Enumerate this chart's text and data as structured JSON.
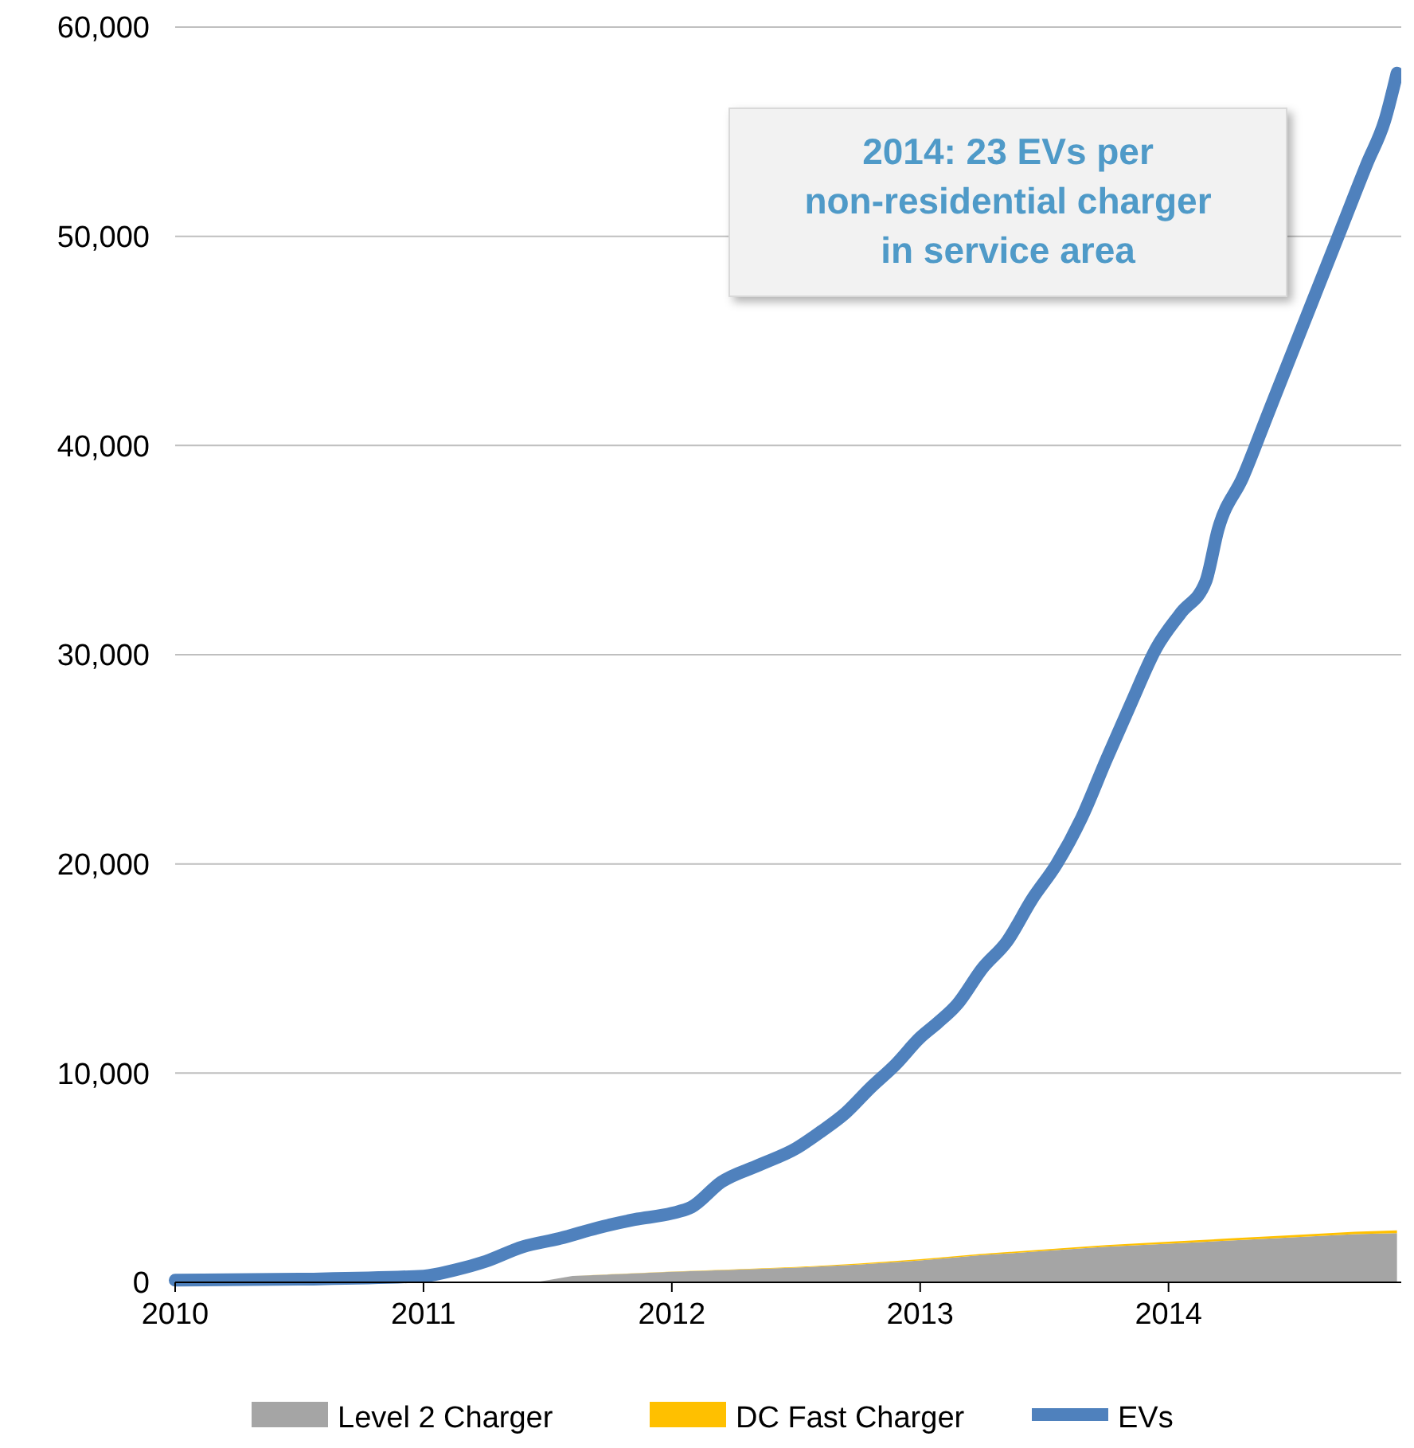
{
  "chart_data": {
    "type": "area",
    "stacked": true,
    "x": [
      2011.45,
      2011.6,
      2011.8,
      2012.0,
      2012.25,
      2012.5,
      2012.75,
      2013.0,
      2013.25,
      2013.5,
      2013.75,
      2014.0,
      2014.25,
      2014.5,
      2014.75,
      2014.92
    ],
    "series": [
      {
        "name": "Level 2 Charger",
        "color": "#a5a5a5",
        "values": [
          0,
          300,
          400,
          500,
          600,
          700,
          850,
          1050,
          1300,
          1500,
          1700,
          1850,
          2000,
          2150,
          2300,
          2350
        ]
      },
      {
        "name": "DC Fast Charger",
        "color": "#ffc000",
        "values": [
          0,
          5,
          10,
          15,
          20,
          30,
          40,
          50,
          60,
          70,
          80,
          90,
          100,
          110,
          120,
          130
        ]
      },
      {
        "name": "EVs",
        "type": "line",
        "color": "#4f81bd",
        "x": [
          2010.0,
          2010.5,
          2011.0,
          2011.13,
          2011.25,
          2011.4,
          2011.55,
          2011.7,
          2011.85,
          2012.0,
          2012.08,
          2012.2,
          2012.35,
          2012.5,
          2012.6,
          2012.7,
          2012.8,
          2012.9,
          2013.0,
          2013.07,
          2013.15,
          2013.25,
          2013.35,
          2013.45,
          2013.55,
          2013.65,
          2013.75,
          2013.85,
          2013.95,
          2014.05,
          2014.15,
          2014.2,
          2014.3,
          2014.4,
          2014.5,
          2014.6,
          2014.7,
          2014.8,
          2014.87,
          2014.92
        ],
        "values": [
          100,
          150,
          300,
          600,
          1000,
          1700,
          2100,
          2600,
          3000,
          3300,
          3600,
          4800,
          5600,
          6400,
          7200,
          8100,
          9300,
          10400,
          11700,
          12400,
          13300,
          15000,
          16300,
          18300,
          20000,
          22200,
          25000,
          27700,
          30300,
          32000,
          33500,
          36000,
          38500,
          41500,
          44500,
          47500,
          50500,
          53500,
          55500,
          57800
        ]
      }
    ],
    "xlim": [
      2010,
      2014.95
    ],
    "xticks": [
      2010,
      2011,
      2012,
      2013,
      2014
    ],
    "ylim": [
      0,
      60000
    ],
    "yticks": [
      0,
      {
        "value": 10000,
        "label": "10,000"
      },
      {
        "value": 20000,
        "label": "20,000"
      },
      {
        "value": 30000,
        "label": "30,000"
      },
      {
        "value": 40000,
        "label": "40,000"
      },
      {
        "value": 50000,
        "label": "50,000"
      },
      {
        "value": 60000,
        "label": "60,000"
      }
    ],
    "grid": "y",
    "legend": "bottom",
    "annotations": [
      "2014: 23 EVs per non-residential charger in service area"
    ]
  }
}
